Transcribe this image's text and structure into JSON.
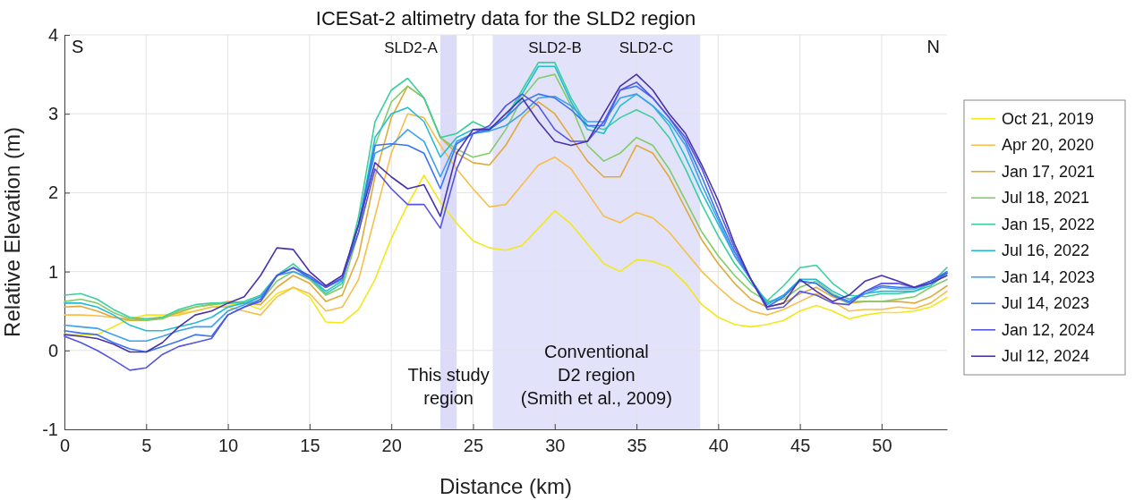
{
  "chart_data": {
    "type": "line",
    "title": "ICESat-2 altimetry data for the SLD2 region",
    "xlabel": "Distance (km)",
    "ylabel": "Relative Elevation (m)",
    "x": [
      0,
      1,
      2,
      3,
      4,
      5,
      6,
      7,
      8,
      9,
      10,
      11,
      12,
      13,
      14,
      15,
      16,
      17,
      18,
      19,
      20,
      21,
      22,
      23,
      24,
      25,
      26,
      27,
      28,
      29,
      30,
      31,
      32,
      33,
      34,
      35,
      36,
      37,
      38,
      39,
      40,
      41,
      42,
      43,
      44,
      45,
      46,
      47,
      48,
      49,
      50,
      51,
      52,
      53,
      54
    ],
    "series": [
      {
        "name": "Oct 21, 2019",
        "color": "#f2e81c",
        "values": [
          0.21,
          0.2,
          0.2,
          0.3,
          0.4,
          0.45,
          0.45,
          0.47,
          0.5,
          0.55,
          0.57,
          0.6,
          0.52,
          0.72,
          0.8,
          0.68,
          0.36,
          0.35,
          0.52,
          0.9,
          1.42,
          1.85,
          2.22,
          1.88,
          1.61,
          1.39,
          1.3,
          1.27,
          1.33,
          1.55,
          1.77,
          1.6,
          1.35,
          1.1,
          1.0,
          1.15,
          1.13,
          1.05,
          0.85,
          0.58,
          0.42,
          0.33,
          0.3,
          0.33,
          0.38,
          0.5,
          0.57,
          0.5,
          0.4,
          0.45,
          0.48,
          0.48,
          0.5,
          0.55,
          0.67
        ]
      },
      {
        "name": "Apr 20, 2020",
        "color": "#f7bf4a",
        "values": [
          0.45,
          0.45,
          0.44,
          0.42,
          0.4,
          0.4,
          0.42,
          0.45,
          0.5,
          0.55,
          0.55,
          0.5,
          0.45,
          0.68,
          0.8,
          0.72,
          0.5,
          0.55,
          0.9,
          1.7,
          2.5,
          3.0,
          2.95,
          2.6,
          2.3,
          2.05,
          1.82,
          1.85,
          2.1,
          2.35,
          2.45,
          2.3,
          2.0,
          1.7,
          1.62,
          1.75,
          1.68,
          1.5,
          1.25,
          1.0,
          0.8,
          0.62,
          0.5,
          0.45,
          0.52,
          0.62,
          0.72,
          0.62,
          0.5,
          0.52,
          0.52,
          0.55,
          0.53,
          0.6,
          0.75
        ]
      },
      {
        "name": "Jan 17, 2021",
        "color": "#e0aa3a",
        "values": [
          0.55,
          0.56,
          0.5,
          0.42,
          0.38,
          0.38,
          0.42,
          0.48,
          0.55,
          0.58,
          0.62,
          0.6,
          0.58,
          0.8,
          0.95,
          0.85,
          0.62,
          0.7,
          1.2,
          2.2,
          2.95,
          3.35,
          3.2,
          2.7,
          2.5,
          2.38,
          2.35,
          2.6,
          2.95,
          3.15,
          3.0,
          2.7,
          2.4,
          2.2,
          2.2,
          2.6,
          2.5,
          2.2,
          1.8,
          1.4,
          1.1,
          0.85,
          0.65,
          0.55,
          0.6,
          0.72,
          0.8,
          0.68,
          0.6,
          0.62,
          0.62,
          0.62,
          0.6,
          0.68,
          0.82
        ]
      },
      {
        "name": "Jul 18, 2021",
        "color": "#82cc6a",
        "values": [
          0.62,
          0.65,
          0.6,
          0.48,
          0.4,
          0.38,
          0.4,
          0.5,
          0.55,
          0.58,
          0.6,
          0.6,
          0.62,
          0.88,
          1.0,
          0.9,
          0.7,
          0.8,
          1.5,
          2.6,
          3.15,
          3.35,
          3.2,
          2.7,
          2.55,
          2.45,
          2.5,
          2.8,
          3.2,
          3.45,
          3.5,
          3.1,
          2.6,
          2.4,
          2.5,
          2.7,
          2.6,
          2.3,
          1.9,
          1.5,
          1.2,
          0.95,
          0.75,
          0.62,
          0.65,
          0.8,
          0.88,
          0.72,
          0.62,
          0.62,
          0.62,
          0.65,
          0.68,
          0.8,
          0.9
        ]
      },
      {
        "name": "Jan 15, 2022",
        "color": "#3ccf9e",
        "values": [
          0.7,
          0.72,
          0.65,
          0.52,
          0.42,
          0.4,
          0.42,
          0.52,
          0.58,
          0.6,
          0.6,
          0.62,
          0.7,
          0.95,
          1.1,
          0.92,
          0.72,
          0.85,
          1.7,
          2.9,
          3.3,
          3.45,
          3.2,
          2.7,
          2.75,
          2.9,
          2.8,
          2.95,
          3.3,
          3.65,
          3.65,
          3.2,
          2.85,
          2.8,
          2.95,
          3.05,
          2.95,
          2.7,
          2.3,
          1.85,
          1.45,
          1.1,
          0.85,
          0.63,
          0.82,
          1.05,
          1.08,
          0.85,
          0.7,
          0.68,
          0.72,
          0.72,
          0.75,
          0.85,
          1.05
        ]
      },
      {
        "name": "Jul 16, 2022",
        "color": "#24bcd4",
        "values": [
          0.6,
          0.6,
          0.55,
          0.45,
          0.32,
          0.25,
          0.25,
          0.3,
          0.35,
          0.42,
          0.55,
          0.6,
          0.68,
          0.95,
          1.05,
          0.92,
          0.75,
          0.88,
          1.6,
          2.7,
          3.0,
          3.08,
          2.9,
          2.45,
          2.7,
          2.8,
          2.82,
          2.95,
          3.25,
          3.6,
          3.6,
          3.15,
          2.8,
          2.75,
          3.1,
          3.25,
          3.1,
          2.85,
          2.45,
          2.0,
          1.6,
          1.2,
          0.9,
          0.6,
          0.7,
          0.9,
          0.9,
          0.75,
          0.65,
          0.72,
          0.75,
          0.75,
          0.75,
          0.82,
          0.98
        ]
      },
      {
        "name": "Jan 14, 2023",
        "color": "#3ca0f0",
        "values": [
          0.32,
          0.3,
          0.28,
          0.2,
          0.12,
          0.12,
          0.18,
          0.25,
          0.3,
          0.3,
          0.5,
          0.58,
          0.68,
          0.95,
          1.0,
          0.92,
          0.8,
          0.9,
          1.6,
          2.5,
          2.6,
          2.8,
          2.65,
          2.2,
          2.65,
          2.75,
          2.78,
          2.85,
          3.0,
          3.2,
          3.22,
          3.1,
          2.9,
          2.9,
          3.2,
          3.25,
          3.1,
          2.9,
          2.6,
          2.1,
          1.65,
          1.2,
          0.9,
          0.58,
          0.7,
          0.88,
          0.85,
          0.7,
          0.6,
          0.72,
          0.8,
          0.78,
          0.78,
          0.85,
          0.98
        ]
      },
      {
        "name": "Jul 14, 2023",
        "color": "#3a74f0",
        "values": [
          0.25,
          0.22,
          0.2,
          0.1,
          0.02,
          -0.02,
          0.05,
          0.12,
          0.2,
          0.18,
          0.45,
          0.55,
          0.65,
          0.95,
          1.05,
          0.92,
          0.8,
          0.92,
          1.6,
          2.6,
          2.62,
          2.6,
          2.5,
          2.05,
          2.62,
          2.75,
          2.8,
          2.95,
          3.15,
          3.25,
          3.2,
          3.05,
          2.85,
          2.85,
          3.3,
          3.35,
          3.2,
          2.95,
          2.65,
          2.2,
          1.7,
          1.25,
          0.9,
          0.55,
          0.68,
          0.88,
          0.85,
          0.7,
          0.62,
          0.75,
          0.82,
          0.8,
          0.8,
          0.88,
          1.0
        ]
      },
      {
        "name": "Jan 12, 2024",
        "color": "#5454e0",
        "values": [
          0.18,
          0.1,
          0.0,
          -0.12,
          -0.25,
          -0.22,
          -0.05,
          0.05,
          0.1,
          0.15,
          0.45,
          0.55,
          0.62,
          0.95,
          1.05,
          0.95,
          0.8,
          0.92,
          1.5,
          2.3,
          2.05,
          1.85,
          1.85,
          1.55,
          2.3,
          2.75,
          2.85,
          3.1,
          3.25,
          3.1,
          2.8,
          2.65,
          2.65,
          2.9,
          3.3,
          3.4,
          3.2,
          2.95,
          2.7,
          2.3,
          1.8,
          1.3,
          0.9,
          0.52,
          0.55,
          0.75,
          0.7,
          0.6,
          0.58,
          0.75,
          0.85,
          0.85,
          0.8,
          0.88,
          0.98
        ]
      },
      {
        "name": "Jul 12, 2024",
        "color": "#4a32a8",
        "values": [
          0.2,
          0.18,
          0.15,
          0.08,
          -0.02,
          -0.02,
          0.1,
          0.3,
          0.45,
          0.5,
          0.6,
          0.68,
          0.95,
          1.3,
          1.28,
          1.0,
          0.82,
          0.95,
          1.6,
          2.38,
          2.2,
          2.05,
          2.1,
          1.7,
          2.5,
          2.8,
          2.8,
          3.0,
          3.2,
          2.9,
          2.65,
          2.6,
          2.65,
          3.0,
          3.35,
          3.5,
          3.3,
          3.0,
          2.75,
          2.35,
          1.9,
          1.35,
          0.9,
          0.55,
          0.6,
          0.9,
          0.75,
          0.62,
          0.7,
          0.88,
          0.95,
          0.88,
          0.8,
          0.85,
          0.95
        ]
      }
    ],
    "xlim": [
      0,
      54
    ],
    "xticks": [
      0,
      5,
      10,
      15,
      20,
      25,
      30,
      35,
      40,
      45,
      50
    ],
    "ylim": [
      -1,
      4
    ],
    "yticks": [
      -1,
      0,
      1,
      2,
      3,
      4
    ],
    "grid": true,
    "legend": "right",
    "bands": [
      {
        "axis": "x",
        "from": 23,
        "to": 24,
        "label": "This study\nregion",
        "color": "#dcdcf8"
      },
      {
        "axis": "x",
        "from": 26.2,
        "to": 38.9,
        "label": "Conventional\nD2 region\n(Smith et al., 2009)",
        "color": "#e2e2fa"
      }
    ],
    "annotations": [
      "S",
      "N",
      "SLD2-A",
      "SLD2-B",
      "SLD2-C"
    ]
  }
}
